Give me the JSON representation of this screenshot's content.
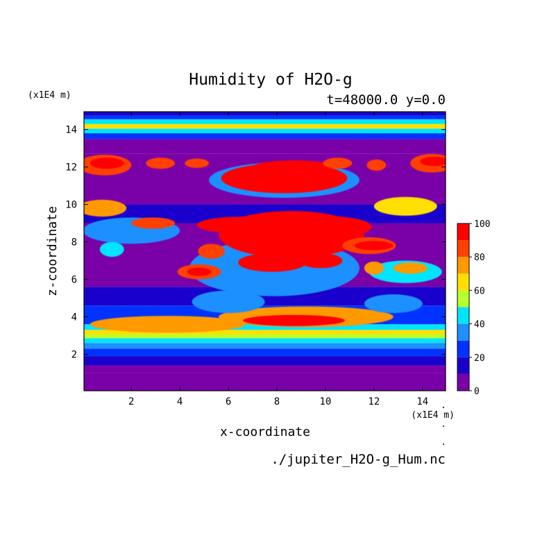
{
  "chart_data": {
    "type": "heatmap",
    "title": "Humidity of H2O-g",
    "subtitle": "t=48000.0 y=0.0",
    "xlabel": "x-coordinate",
    "ylabel": "z-coordinate",
    "x_unit": "(x1E4 m)",
    "y_unit": "(x1E4 m)",
    "source": "./jupiter_H2O-g_Hum.nc",
    "xlim": [
      0.05,
      14.95
    ],
    "ylim": [
      0.05,
      14.95
    ],
    "x_ticks": [
      2,
      4,
      6,
      8,
      10,
      12,
      14
    ],
    "y_ticks": [
      2,
      4,
      6,
      8,
      10,
      12,
      14
    ],
    "colorbar": {
      "levels": [
        0,
        10,
        20,
        30,
        40,
        50,
        60,
        70,
        80,
        90,
        100
      ],
      "tick_labels": [
        0,
        20,
        40,
        60,
        80,
        100
      ],
      "colors": [
        "#7a00a8",
        "#1a00cc",
        "#0033ff",
        "#1e90ff",
        "#00e5ff",
        "#b8ff2e",
        "#ffe000",
        "#ff9900",
        "#ff4000",
        "#ff0000",
        "#ffb3b3"
      ]
    },
    "horizontal_bands": [
      {
        "z": [
          0.05,
          1.0
        ],
        "value": 5
      },
      {
        "z": [
          1.0,
          1.4
        ],
        "value": 5
      },
      {
        "z": [
          1.4,
          1.9
        ],
        "value": 15
      },
      {
        "z": [
          1.9,
          2.3
        ],
        "value": 25
      },
      {
        "z": [
          2.3,
          2.6
        ],
        "value": 35
      },
      {
        "z": [
          2.6,
          2.85
        ],
        "value": 45
      },
      {
        "z": [
          2.85,
          3.05
        ],
        "value": 55
      },
      {
        "z": [
          3.05,
          3.3
        ],
        "value": 65
      },
      {
        "z": [
          3.3,
          3.6
        ],
        "value": 45
      },
      {
        "z": [
          3.6,
          4.6
        ],
        "value": 25
      },
      {
        "z": [
          4.6,
          5.6
        ],
        "value": 15
      },
      {
        "z": [
          5.6,
          9.0
        ],
        "value": 5
      },
      {
        "z": [
          9.0,
          10.0
        ],
        "value": 15
      },
      {
        "z": [
          10.0,
          12.7
        ],
        "value": 5
      },
      {
        "z": [
          12.7,
          13.5
        ],
        "value": 5
      },
      {
        "z": [
          13.5,
          13.8
        ],
        "value": 25
      },
      {
        "z": [
          13.8,
          14.05
        ],
        "value": 45
      },
      {
        "z": [
          14.05,
          14.3
        ],
        "value": 60
      },
      {
        "z": [
          14.3,
          14.55
        ],
        "value": 45
      },
      {
        "z": [
          14.55,
          14.75
        ],
        "value": 25
      },
      {
        "z": [
          14.75,
          14.95
        ],
        "value": 15
      }
    ],
    "features": [
      {
        "x": 9.2,
        "z": 4.0,
        "rx": 3.6,
        "rz": 0.55,
        "value": 75
      },
      {
        "x": 3.5,
        "z": 3.6,
        "rx": 3.2,
        "rz": 0.45,
        "value": 70
      },
      {
        "x": 8.7,
        "z": 3.8,
        "rx": 2.1,
        "rz": 0.3,
        "value": 95
      },
      {
        "x": 7.9,
        "z": 6.6,
        "rx": 3.5,
        "rz": 1.5,
        "value": 35
      },
      {
        "x": 8.6,
        "z": 8.4,
        "rx": 3.0,
        "rz": 1.25,
        "value": 95
      },
      {
        "x": 6.6,
        "z": 8.9,
        "rx": 1.9,
        "rz": 0.45,
        "value": 95
      },
      {
        "x": 10.3,
        "z": 8.8,
        "rx": 1.6,
        "rz": 0.55,
        "value": 95
      },
      {
        "x": 7.8,
        "z": 6.9,
        "rx": 1.4,
        "rz": 0.5,
        "value": 95
      },
      {
        "x": 9.8,
        "z": 7.0,
        "rx": 0.9,
        "rz": 0.4,
        "value": 95
      },
      {
        "x": 8.3,
        "z": 11.3,
        "rx": 3.1,
        "rz": 0.95,
        "value": 35
      },
      {
        "x": 8.3,
        "z": 11.4,
        "rx": 2.6,
        "rz": 0.8,
        "value": 95
      },
      {
        "x": 8.7,
        "z": 12.0,
        "rx": 1.7,
        "rz": 0.35,
        "value": 95
      },
      {
        "x": 11.8,
        "z": 7.8,
        "rx": 1.1,
        "rz": 0.45,
        "value": 85
      },
      {
        "x": 12.0,
        "z": 7.8,
        "rx": 0.8,
        "rz": 0.25,
        "value": 95
      },
      {
        "x": 5.3,
        "z": 7.5,
        "rx": 0.55,
        "rz": 0.4,
        "value": 85
      },
      {
        "x": 4.8,
        "z": 6.4,
        "rx": 0.9,
        "rz": 0.4,
        "value": 85
      },
      {
        "x": 4.8,
        "z": 6.4,
        "rx": 0.5,
        "rz": 0.22,
        "value": 95
      },
      {
        "x": 0.9,
        "z": 12.1,
        "rx": 1.1,
        "rz": 0.55,
        "value": 85
      },
      {
        "x": 1.0,
        "z": 12.2,
        "rx": 0.7,
        "rz": 0.3,
        "value": 95
      },
      {
        "x": 14.4,
        "z": 12.2,
        "rx": 0.9,
        "rz": 0.5,
        "value": 85
      },
      {
        "x": 14.5,
        "z": 12.3,
        "rx": 0.6,
        "rz": 0.25,
        "value": 95
      },
      {
        "x": 2.0,
        "z": 8.6,
        "rx": 2.0,
        "rz": 0.7,
        "value": 35
      },
      {
        "x": 0.8,
        "z": 9.8,
        "rx": 1.0,
        "rz": 0.45,
        "value": 70
      },
      {
        "x": 2.9,
        "z": 9.0,
        "rx": 0.9,
        "rz": 0.3,
        "value": 85
      },
      {
        "x": 13.3,
        "z": 9.9,
        "rx": 1.3,
        "rz": 0.5,
        "value": 65
      },
      {
        "x": 13.3,
        "z": 6.4,
        "rx": 1.5,
        "rz": 0.6,
        "value": 40
      },
      {
        "x": 13.5,
        "z": 6.6,
        "rx": 0.7,
        "rz": 0.3,
        "value": 75
      },
      {
        "x": 12.0,
        "z": 6.6,
        "rx": 0.4,
        "rz": 0.35,
        "value": 75
      },
      {
        "x": 10.5,
        "z": 12.2,
        "rx": 0.6,
        "rz": 0.3,
        "value": 85
      },
      {
        "x": 12.1,
        "z": 12.1,
        "rx": 0.4,
        "rz": 0.3,
        "value": 85
      },
      {
        "x": 3.2,
        "z": 12.2,
        "rx": 0.6,
        "rz": 0.3,
        "value": 85
      },
      {
        "x": 4.7,
        "z": 12.2,
        "rx": 0.5,
        "rz": 0.25,
        "value": 85
      },
      {
        "x": 1.2,
        "z": 7.6,
        "rx": 0.5,
        "rz": 0.4,
        "value": 45
      },
      {
        "x": 12.8,
        "z": 4.7,
        "rx": 1.2,
        "rz": 0.5,
        "value": 35
      },
      {
        "x": 6.0,
        "z": 4.8,
        "rx": 1.5,
        "rz": 0.6,
        "value": 30
      }
    ]
  }
}
